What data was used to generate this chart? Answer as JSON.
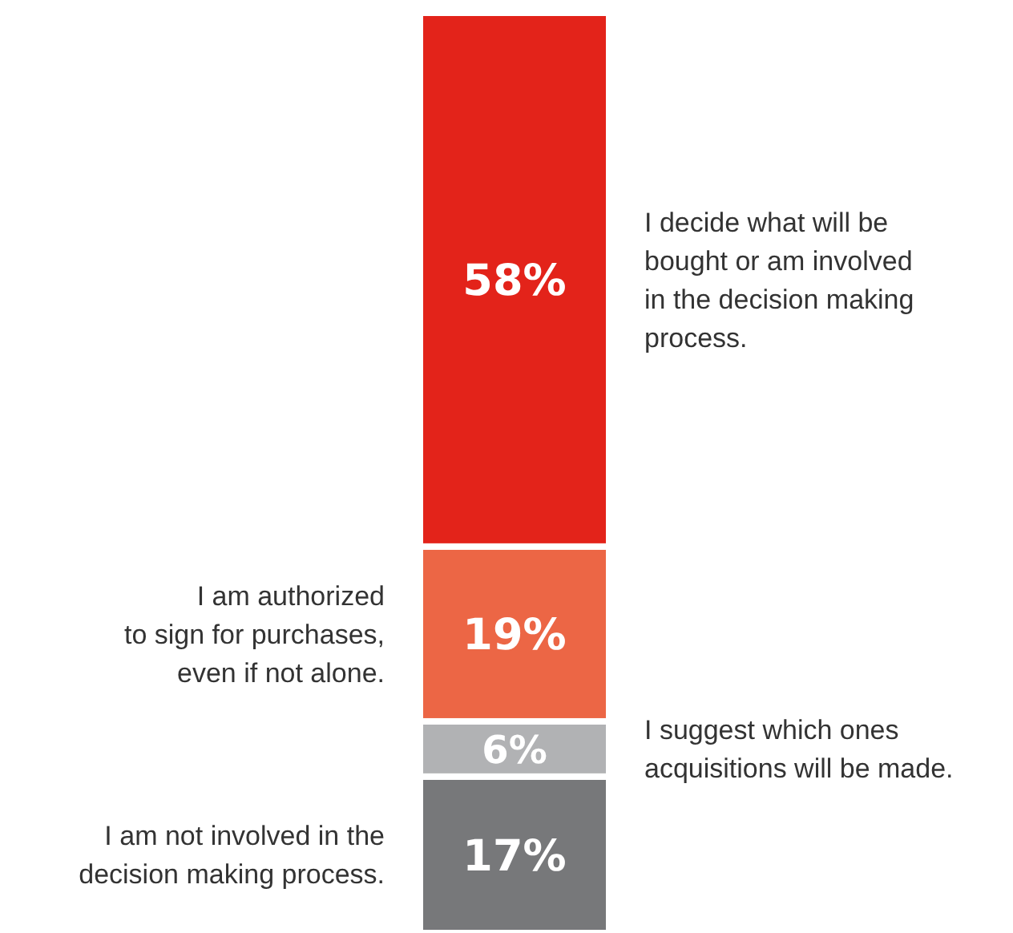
{
  "chart_data": {
    "type": "bar",
    "stacked": true,
    "categories": [
      null
    ],
    "ylim": [
      0,
      100
    ],
    "series": [
      {
        "name": "I am not involved in the\ndecision making process.",
        "color": "#77787a",
        "values": [
          17
        ],
        "value_labels": [
          "17%"
        ]
      },
      {
        "name": "I suggest which ones\nacquisitions will be made.",
        "color": "#b1b2b4",
        "values": [
          6
        ],
        "value_labels": [
          "6%"
        ]
      },
      {
        "name": "I am authorized\nto sign for purchases,\neven if not alone.",
        "color": "#ec6645",
        "values": [
          19
        ],
        "value_labels": [
          "19%"
        ]
      },
      {
        "name": "I decide what will be\nbought or am involved\nin the decision making\nprocess.",
        "color": "#e3231a",
        "values": [
          58
        ],
        "value_labels": [
          "58%"
        ]
      }
    ]
  }
}
